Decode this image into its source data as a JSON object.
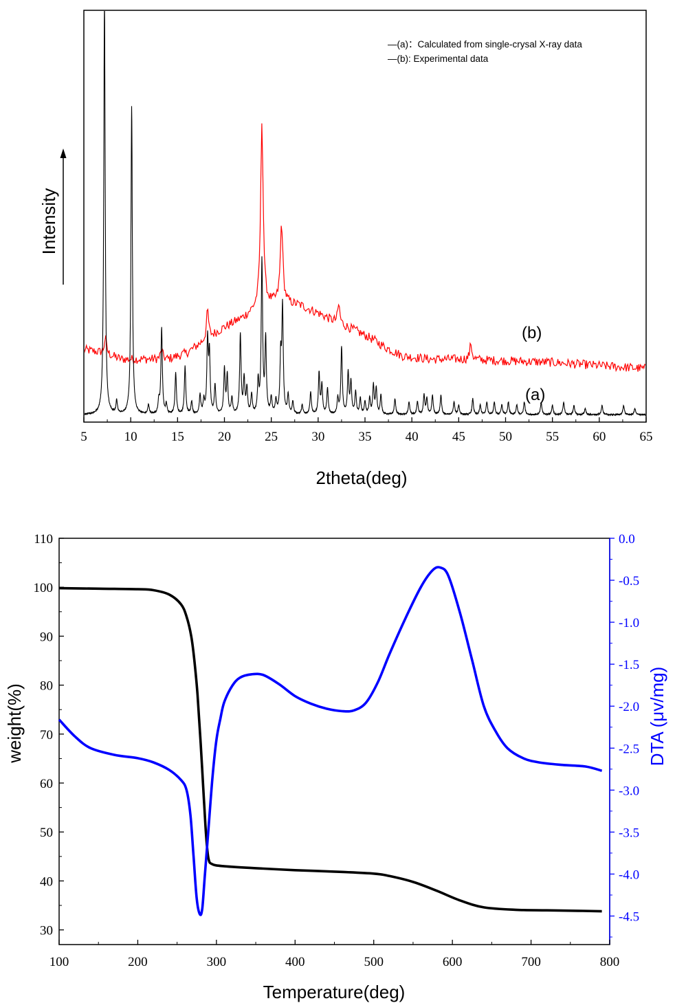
{
  "chart_data": [
    {
      "type": "line",
      "title": "",
      "xlabel": "2theta(deg)",
      "ylabel": "Intensity",
      "xlim": [
        5,
        65
      ],
      "xticks": [
        5,
        10,
        15,
        20,
        25,
        30,
        35,
        40,
        45,
        50,
        55,
        60,
        65
      ],
      "y_scale": "arbitrary units (no tick labels), upward arrow beside ylabel",
      "grid": false,
      "legend_position": "top-right",
      "legend": [
        {
          "text": "—(a)：Calculated from single-crysal X-ray data",
          "color": "#000000"
        },
        {
          "text": "—(b):  Experimental data",
          "color": "#000000"
        }
      ],
      "series": [
        {
          "name": "(a)",
          "color": "#000000",
          "baseline": 1,
          "peak_width_deg": 0.09,
          "peaks": [
            [
              7.2,
              130
            ],
            [
              8.5,
              4
            ],
            [
              10.1,
              97
            ],
            [
              11.9,
              3
            ],
            [
              13.0,
              4
            ],
            [
              13.3,
              27
            ],
            [
              13.8,
              3
            ],
            [
              14.8,
              13
            ],
            [
              15.8,
              15
            ],
            [
              16.5,
              4
            ],
            [
              17.4,
              6
            ],
            [
              17.8,
              4
            ],
            [
              18.2,
              23
            ],
            [
              18.4,
              18
            ],
            [
              19.0,
              9
            ],
            [
              20.0,
              14
            ],
            [
              20.3,
              12
            ],
            [
              20.8,
              5
            ],
            [
              21.7,
              25
            ],
            [
              22.1,
              11
            ],
            [
              22.4,
              8
            ],
            [
              22.9,
              6
            ],
            [
              23.6,
              10
            ],
            [
              24.0,
              48
            ],
            [
              24.4,
              23
            ],
            [
              25.0,
              5
            ],
            [
              25.5,
              4
            ],
            [
              26.0,
              17
            ],
            [
              26.2,
              33
            ],
            [
              26.8,
              6
            ],
            [
              27.3,
              4
            ],
            [
              28.3,
              3
            ],
            [
              29.2,
              7
            ],
            [
              30.1,
              13
            ],
            [
              30.4,
              9
            ],
            [
              31.0,
              8
            ],
            [
              32.1,
              5
            ],
            [
              32.5,
              21
            ],
            [
              33.2,
              13
            ],
            [
              33.5,
              10
            ],
            [
              34.0,
              7
            ],
            [
              34.5,
              5
            ],
            [
              35.0,
              4
            ],
            [
              35.5,
              5
            ],
            [
              35.9,
              9
            ],
            [
              36.2,
              8
            ],
            [
              36.7,
              6
            ],
            [
              38.2,
              5
            ],
            [
              39.7,
              4
            ],
            [
              40.6,
              4
            ],
            [
              41.3,
              6
            ],
            [
              41.6,
              5
            ],
            [
              42.2,
              6
            ],
            [
              43.1,
              6
            ],
            [
              44.5,
              4
            ],
            [
              45.0,
              3
            ],
            [
              46.5,
              5
            ],
            [
              47.3,
              3
            ],
            [
              48.0,
              4
            ],
            [
              48.8,
              4
            ],
            [
              49.6,
              3
            ],
            [
              50.3,
              4
            ],
            [
              51.2,
              3
            ],
            [
              52.0,
              4
            ],
            [
              53.8,
              4
            ],
            [
              55.0,
              3
            ],
            [
              56.2,
              4
            ],
            [
              57.3,
              3
            ],
            [
              58.5,
              2
            ],
            [
              60.3,
              3
            ],
            [
              62.6,
              3
            ],
            [
              63.8,
              2
            ]
          ]
        },
        {
          "name": "(b)",
          "color": "#ff0000",
          "noise_amplitude": 0.9,
          "background": [
            [
              5,
              21.5
            ],
            [
              7,
              20.5
            ],
            [
              9,
              18.5
            ],
            [
              11,
              18.5
            ],
            [
              14,
              18.5
            ],
            [
              16,
              20.5
            ],
            [
              18,
              24.5
            ],
            [
              20,
              28.5
            ],
            [
              22,
              31.5
            ],
            [
              24,
              35.5
            ],
            [
              26,
              36.5
            ],
            [
              28,
              35.5
            ],
            [
              30,
              33
            ],
            [
              32,
              30
            ],
            [
              34,
              27.5
            ],
            [
              36,
              24.5
            ],
            [
              37,
              22.5
            ],
            [
              39,
              19.5
            ],
            [
              42,
              18.5
            ],
            [
              45,
              18.5
            ],
            [
              50,
              18
            ],
            [
              55,
              17.5
            ],
            [
              60,
              16.5
            ],
            [
              65,
              15.5
            ]
          ],
          "peaks": [
            [
              7.3,
              5
            ],
            [
              13.3,
              3
            ],
            [
              18.2,
              9
            ],
            [
              24.0,
              58
            ],
            [
              26.1,
              25
            ],
            [
              32.2,
              6
            ],
            [
              46.3,
              5
            ]
          ]
        }
      ],
      "annotations": [
        "(a)",
        "(b)"
      ]
    },
    {
      "type": "line",
      "title": "",
      "xlabel": "Temperature(deg)",
      "ylabel": "weight(%)",
      "ylabel_right": "DTA (μv/mg)",
      "xlim": [
        100,
        800
      ],
      "ylim": [
        27,
        110
      ],
      "ylim_right": [
        -4.84,
        0
      ],
      "xticks": [
        100,
        200,
        300,
        400,
        500,
        600,
        700,
        800
      ],
      "yticks": [
        30,
        40,
        50,
        60,
        70,
        80,
        90,
        100,
        110
      ],
      "yticks_right": [
        0.0,
        -0.5,
        -1.0,
        -1.5,
        -2.0,
        -2.5,
        -3.0,
        -3.5,
        -4.0,
        -4.5
      ],
      "yticks_right_labels": [
        "0.0",
        "-0.5",
        "-1.0",
        "-1.5",
        "-2.0",
        "-2.5",
        "-3.0",
        "-3.5",
        "-4.0",
        "-4.5"
      ],
      "right_axis_color": "#0000ff",
      "grid": false,
      "series": [
        {
          "name": "weight",
          "axis": "left",
          "color": "#000000",
          "points": [
            [
              100,
              99.8
            ],
            [
              150,
              99.7
            ],
            [
              200,
              99.6
            ],
            [
              220,
              99.4
            ],
            [
              240,
              98.5
            ],
            [
              255,
              96.5
            ],
            [
              262,
              94
            ],
            [
              268,
              90
            ],
            [
              272,
              85
            ],
            [
              276,
              78
            ],
            [
              280,
              68
            ],
            [
              284,
              57
            ],
            [
              287,
              49
            ],
            [
              290,
              44.5
            ],
            [
              295,
              43.4
            ],
            [
              310,
              43
            ],
            [
              350,
              42.6
            ],
            [
              400,
              42.2
            ],
            [
              450,
              41.9
            ],
            [
              500,
              41.5
            ],
            [
              520,
              41.0
            ],
            [
              550,
              39.8
            ],
            [
              580,
              38
            ],
            [
              610,
              36
            ],
            [
              640,
              34.6
            ],
            [
              680,
              34.1
            ],
            [
              720,
              34
            ],
            [
              760,
              33.9
            ],
            [
              790,
              33.8
            ]
          ]
        },
        {
          "name": "DTA",
          "axis": "right",
          "color": "#0000ff",
          "points": [
            [
              100,
              -2.16
            ],
            [
              120,
              -2.36
            ],
            [
              140,
              -2.5
            ],
            [
              170,
              -2.58
            ],
            [
              200,
              -2.62
            ],
            [
              220,
              -2.67
            ],
            [
              240,
              -2.76
            ],
            [
              255,
              -2.88
            ],
            [
              262,
              -3.0
            ],
            [
              267,
              -3.3
            ],
            [
              271,
              -3.8
            ],
            [
              275,
              -4.3
            ],
            [
              279,
              -4.48
            ],
            [
              282,
              -4.41
            ],
            [
              285,
              -4.05
            ],
            [
              290,
              -3.45
            ],
            [
              295,
              -2.85
            ],
            [
              300,
              -2.4
            ],
            [
              305,
              -2.15
            ],
            [
              310,
              -1.95
            ],
            [
              320,
              -1.76
            ],
            [
              330,
              -1.66
            ],
            [
              345,
              -1.62
            ],
            [
              360,
              -1.63
            ],
            [
              380,
              -1.74
            ],
            [
              400,
              -1.88
            ],
            [
              420,
              -1.97
            ],
            [
              440,
              -2.03
            ],
            [
              460,
              -2.06
            ],
            [
              475,
              -2.05
            ],
            [
              490,
              -1.96
            ],
            [
              505,
              -1.72
            ],
            [
              520,
              -1.38
            ],
            [
              540,
              -0.96
            ],
            [
              560,
              -0.58
            ],
            [
              575,
              -0.38
            ],
            [
              585,
              -0.35
            ],
            [
              595,
              -0.45
            ],
            [
              610,
              -0.9
            ],
            [
              625,
              -1.45
            ],
            [
              640,
              -2.0
            ],
            [
              655,
              -2.3
            ],
            [
              670,
              -2.5
            ],
            [
              690,
              -2.62
            ],
            [
              710,
              -2.67
            ],
            [
              740,
              -2.7
            ],
            [
              770,
              -2.72
            ],
            [
              790,
              -2.77
            ]
          ]
        }
      ]
    }
  ],
  "colors": {
    "xrd_calculated": "#000000",
    "xrd_experimental": "#ff0000",
    "tga_weight": "#000000",
    "dta": "#0000ff"
  }
}
